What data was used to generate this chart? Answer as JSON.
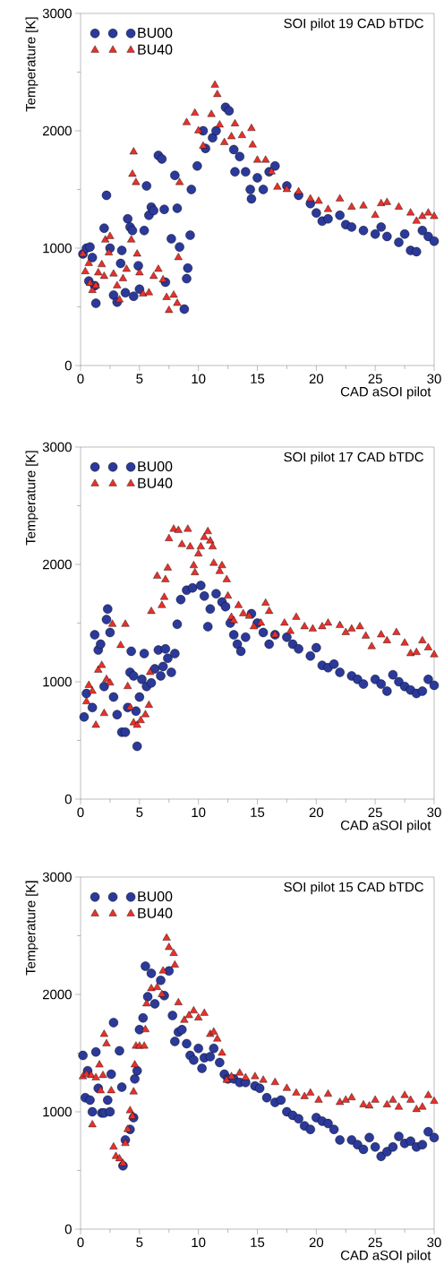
{
  "chart_data": [
    {
      "type": "scatter",
      "title": "SOI pilot 19 CAD bTDC",
      "xlabel": "CAD aSOI pilot",
      "ylabel": "Temperature [K]",
      "xlim": [
        0,
        30
      ],
      "ylim": [
        0,
        3000
      ],
      "xticks": [
        0,
        5,
        10,
        15,
        20,
        25,
        30
      ],
      "yticks": [
        0,
        1000,
        2000,
        3000
      ],
      "legend": "top left",
      "series": [
        {
          "name": "BU00",
          "color": "#2b3a9a",
          "marker": "circle",
          "x": [
            0.2,
            0.5,
            0.7,
            0.8,
            1,
            1.3,
            1.2,
            2.0,
            2.2,
            2.5,
            2.8,
            3.1,
            3.5,
            3.4,
            3.8,
            4.0,
            4.2,
            4.4,
            4.5,
            4.9,
            5.0,
            5.4,
            5.6,
            5.8,
            6.0,
            6.2,
            6.6,
            6.9,
            7.1,
            7.2,
            7.7,
            8.0,
            8.2,
            8.4,
            8.8,
            9.0,
            9.1,
            9.3,
            9.4,
            9.9,
            10.4,
            10.6,
            11.2,
            11.5,
            12.3,
            12.6,
            13.0,
            13.1,
            13.5,
            14.0,
            14.4,
            14.5,
            15.0,
            15.5,
            16.0,
            16.5,
            17.5,
            18.5,
            19.5,
            20.0,
            20.5,
            21,
            22,
            22.5,
            23,
            24,
            25,
            25.5,
            26,
            27,
            27.5,
            28,
            28.5,
            29,
            29.5,
            30
          ],
          "values": [
            950,
            1000,
            720,
            1010,
            920,
            530,
            680,
            1170,
            1450,
            1000,
            600,
            540,
            980,
            870,
            620,
            1250,
            1180,
            1150,
            590,
            850,
            650,
            1150,
            1530,
            1280,
            1350,
            1320,
            1790,
            1760,
            1330,
            710,
            1080,
            1620,
            1340,
            1010,
            480,
            740,
            830,
            1110,
            1500,
            1700,
            2000,
            1850,
            1940,
            2000,
            2200,
            2170,
            1840,
            1650,
            1780,
            1650,
            1500,
            1420,
            1600,
            1500,
            1650,
            1700,
            1530,
            1450,
            1380,
            1300,
            1230,
            1250,
            1280,
            1200,
            1180,
            1150,
            1120,
            1180,
            1100,
            1050,
            1120,
            980,
            970,
            1150,
            1100,
            1060
          ]
        },
        {
          "name": "BU40",
          "color": "#e8312a",
          "marker": "triangle",
          "x": [
            0.2,
            0.4,
            0.7,
            0.8,
            1.0,
            1.3,
            1.5,
            1.8,
            2.0,
            2.1,
            2.5,
            2.4,
            2.8,
            3.1,
            3.3,
            3.6,
            3.9,
            4.3,
            4.5,
            4.4,
            4.7,
            4.8,
            5.0,
            5.3,
            5.8,
            6.2,
            6.6,
            7.0,
            7.3,
            7.5,
            7.9,
            8.2,
            8.4,
            8.3,
            9.0,
            9.7,
            10.0,
            10.4,
            11.1,
            11.4,
            11.6,
            11.8,
            12.2,
            12.8,
            13.1,
            13.7,
            14.5,
            14.6,
            15.0,
            15.7,
            16.2,
            16.7,
            17.5,
            18.5,
            19.5,
            20.2,
            21,
            22,
            23,
            24,
            25,
            25.5,
            26,
            27,
            28,
            28.5,
            29,
            29.5,
            30
          ],
          "values": [
            950,
            800,
            870,
            700,
            640,
            680,
            790,
            860,
            760,
            1070,
            1100,
            960,
            780,
            680,
            560,
            740,
            820,
            1070,
            1820,
            1630,
            1560,
            950,
            790,
            610,
            620,
            760,
            820,
            730,
            580,
            470,
            600,
            530,
            1560,
            920,
            2070,
            2150,
            2000,
            1870,
            2140,
            2390,
            2310,
            2050,
            1900,
            1950,
            2060,
            1960,
            2020,
            1880,
            1750,
            1750,
            1650,
            1520,
            1500,
            1480,
            1420,
            1400,
            1330,
            1420,
            1350,
            1360,
            1280,
            1380,
            1390,
            1350,
            1300,
            1230,
            1270,
            1300,
            1270
          ]
        }
      ]
    },
    {
      "type": "scatter",
      "title": "SOI pilot 17 CAD bTDC",
      "xlabel": "CAD aSOI pilot",
      "ylabel": "Temperature [K]",
      "xlim": [
        0,
        30
      ],
      "ylim": [
        0,
        3000
      ],
      "xticks": [
        0,
        5,
        10,
        15,
        20,
        25,
        30
      ],
      "yticks": [
        0,
        1000,
        2000,
        3000
      ],
      "legend": "top left",
      "series": [
        {
          "name": "BU00",
          "color": "#2b3a9a",
          "marker": "circle",
          "x": [
            0.3,
            0.5,
            1.0,
            1.2,
            1.5,
            1.7,
            2.0,
            2.2,
            2.3,
            2.5,
            2.8,
            3.1,
            3.5,
            3.8,
            4.0,
            4.2,
            4.3,
            4.5,
            4.7,
            4.8,
            5.0,
            5.2,
            5.4,
            5.6,
            6.0,
            6.3,
            6.6,
            6.8,
            7.0,
            7.2,
            7.4,
            7.7,
            8.0,
            8.2,
            8.5,
            9.0,
            9.5,
            10.2,
            10.5,
            10.8,
            11.0,
            11.5,
            12.0,
            12.3,
            12.7,
            13.0,
            13.3,
            13.6,
            14.0,
            14.5,
            15.0,
            15.5,
            16,
            16.5,
            17.5,
            18,
            18.5,
            19.5,
            20.0,
            20.5,
            21,
            21.5,
            22,
            23,
            23.5,
            24,
            25,
            25.5,
            26,
            26.5,
            27,
            27.5,
            28,
            28.5,
            29,
            29.5,
            30
          ],
          "values": [
            700,
            900,
            780,
            1400,
            1270,
            1320,
            960,
            1530,
            1620,
            1420,
            870,
            720,
            570,
            570,
            780,
            1080,
            1260,
            1050,
            750,
            450,
            870,
            1020,
            1240,
            960,
            990,
            1110,
            1270,
            1050,
            1130,
            1280,
            1200,
            1080,
            1240,
            1490,
            1700,
            1780,
            1800,
            1820,
            1730,
            1470,
            1620,
            1750,
            1680,
            1640,
            1500,
            1400,
            1320,
            1260,
            1380,
            1580,
            1500,
            1420,
            1320,
            1400,
            1380,
            1320,
            1280,
            1220,
            1290,
            1140,
            1120,
            1150,
            1080,
            1050,
            1020,
            980,
            1020,
            980,
            920,
            1060,
            1000,
            960,
            930,
            900,
            920,
            1020,
            970
          ]
        },
        {
          "name": "BU40",
          "color": "#e8312a",
          "marker": "triangle",
          "x": [
            0.5,
            0.7,
            1.0,
            1.3,
            1.5,
            1.8,
            2.0,
            2.2,
            2.5,
            2.7,
            3.4,
            3.8,
            4.0,
            4.2,
            4.5,
            4.8,
            5.1,
            5.5,
            5.8,
            5.9,
            6.0,
            6.5,
            6.9,
            7.1,
            7.2,
            7.4,
            7.5,
            7.9,
            8.3,
            8.6,
            9.1,
            9.3,
            9.6,
            9.7,
            10.0,
            10.2,
            10.5,
            10.8,
            11.0,
            11.2,
            11.3,
            11.8,
            12.0,
            12.4,
            12.5,
            12.8,
            13.0,
            13.4,
            13.8,
            14.3,
            14.7,
            15.3,
            15.7,
            16.0,
            16.5,
            17.3,
            17.8,
            18.3,
            19,
            19.7,
            20.5,
            21,
            22,
            22.5,
            23,
            23.7,
            24.2,
            24.7,
            25.5,
            26,
            26.8,
            27.5,
            28,
            28.5,
            29,
            29.5,
            30
          ],
          "values": [
            830,
            970,
            920,
            630,
            1100,
            1140,
            730,
            1020,
            990,
            1490,
            1310,
            1490,
            960,
            780,
            650,
            630,
            670,
            720,
            800,
            1080,
            1600,
            1900,
            1650,
            1720,
            1870,
            1970,
            2220,
            2300,
            2290,
            2170,
            2300,
            2150,
            1990,
            1930,
            2090,
            2150,
            2230,
            2280,
            2200,
            2150,
            2010,
            1940,
            1990,
            1870,
            1730,
            1550,
            1520,
            1650,
            1580,
            1560,
            1470,
            1500,
            1670,
            1600,
            1400,
            1500,
            1430,
            1550,
            1470,
            1450,
            1470,
            1500,
            1480,
            1420,
            1450,
            1470,
            1390,
            1300,
            1400,
            1350,
            1420,
            1330,
            1240,
            1250,
            1350,
            1290,
            1230
          ]
        }
      ]
    },
    {
      "type": "scatter",
      "title": "SOI pilot 15 CAD bTDC",
      "xlabel": "CAD aSOI pilot",
      "ylabel": "Temperature [K]",
      "xlim": [
        0,
        30
      ],
      "ylim": [
        0,
        3000
      ],
      "xticks": [
        0,
        5,
        10,
        15,
        20,
        25,
        30
      ],
      "yticks": [
        0,
        1000,
        2000,
        3000
      ],
      "legend": "top left",
      "series": [
        {
          "name": "BU00",
          "color": "#2b3a9a",
          "marker": "circle",
          "x": [
            0.2,
            0.4,
            0.6,
            0.8,
            1.0,
            1.3,
            1.5,
            1.8,
            2.0,
            2.3,
            2.5,
            2.6,
            2.8,
            3.3,
            3.5,
            3.6,
            3.8,
            4.2,
            4.5,
            4.6,
            4.8,
            5.0,
            5.3,
            5.5,
            5.7,
            6.0,
            6.3,
            6.8,
            7.1,
            7.5,
            7.8,
            8.0,
            8.3,
            8.6,
            9.0,
            9.3,
            9.6,
            10.0,
            10.3,
            10.5,
            11.0,
            11.3,
            11.8,
            12.2,
            12.5,
            13,
            13.5,
            14,
            14.8,
            15.2,
            15.8,
            16.5,
            17,
            17.5,
            18,
            18.5,
            19,
            19.5,
            20,
            20.5,
            21,
            21.5,
            22,
            23,
            23.5,
            24,
            24.5,
            25,
            25.5,
            26,
            26.5,
            27,
            27.5,
            28,
            28.5,
            29,
            29.5,
            30
          ],
          "values": [
            1480,
            1120,
            1350,
            1100,
            1000,
            1510,
            1200,
            990,
            990,
            1100,
            1000,
            1320,
            1760,
            1520,
            1210,
            540,
            760,
            850,
            950,
            1280,
            1350,
            1700,
            1800,
            2240,
            1980,
            2180,
            1920,
            2120,
            1990,
            2200,
            1820,
            1600,
            1680,
            1700,
            1580,
            1480,
            1440,
            1540,
            1370,
            1460,
            1470,
            1540,
            1420,
            1320,
            1280,
            1280,
            1250,
            1250,
            1220,
            1200,
            1120,
            1080,
            1100,
            1000,
            970,
            940,
            880,
            850,
            950,
            920,
            900,
            850,
            760,
            760,
            720,
            680,
            780,
            700,
            620,
            660,
            700,
            790,
            730,
            750,
            700,
            720,
            830,
            780
          ]
        },
        {
          "name": "BU40",
          "color": "#e8312a",
          "marker": "triangle",
          "x": [
            0.2,
            0.5,
            0.9,
            1.0,
            1.3,
            1.6,
            1.7,
            1.9,
            2.0,
            2.2,
            2.6,
            2.8,
            3.0,
            3.3,
            3.6,
            3.8,
            4.0,
            4.2,
            4.4,
            4.5,
            4.6,
            4.7,
            5.0,
            5.4,
            5.5,
            5.6,
            6.0,
            6.5,
            6.9,
            7.0,
            7.3,
            7.5,
            7.9,
            8.0,
            8.3,
            8.8,
            9.2,
            9.6,
            10.0,
            10.5,
            11.0,
            11.3,
            11.6,
            12.0,
            12.4,
            12.8,
            13.5,
            14.0,
            14.8,
            15.5,
            16.5,
            17.5,
            18.3,
            19.0,
            19.5,
            20.2,
            21,
            22,
            22.5,
            23,
            24,
            24.5,
            25,
            26,
            26.5,
            27,
            27.5,
            28,
            28.5,
            29,
            29.5,
            30
          ],
          "values": [
            1300,
            1320,
            1310,
            890,
            1290,
            1400,
            1180,
            1310,
            1660,
            1580,
            1180,
            700,
            620,
            600,
            560,
            730,
            850,
            1010,
            960,
            1170,
            1400,
            1560,
            1560,
            1560,
            1700,
            1920,
            2050,
            2060,
            2000,
            2200,
            2480,
            2400,
            2350,
            2250,
            1930,
            1780,
            1820,
            1860,
            1800,
            1840,
            1660,
            1680,
            1620,
            1500,
            1270,
            1300,
            1330,
            1290,
            1300,
            1270,
            1250,
            1200,
            1160,
            1130,
            1160,
            1100,
            1150,
            1080,
            1100,
            1120,
            1060,
            1050,
            1100,
            1060,
            1100,
            1040,
            1140,
            1100,
            1020,
            1040,
            1140,
            1090
          ]
        }
      ]
    }
  ]
}
